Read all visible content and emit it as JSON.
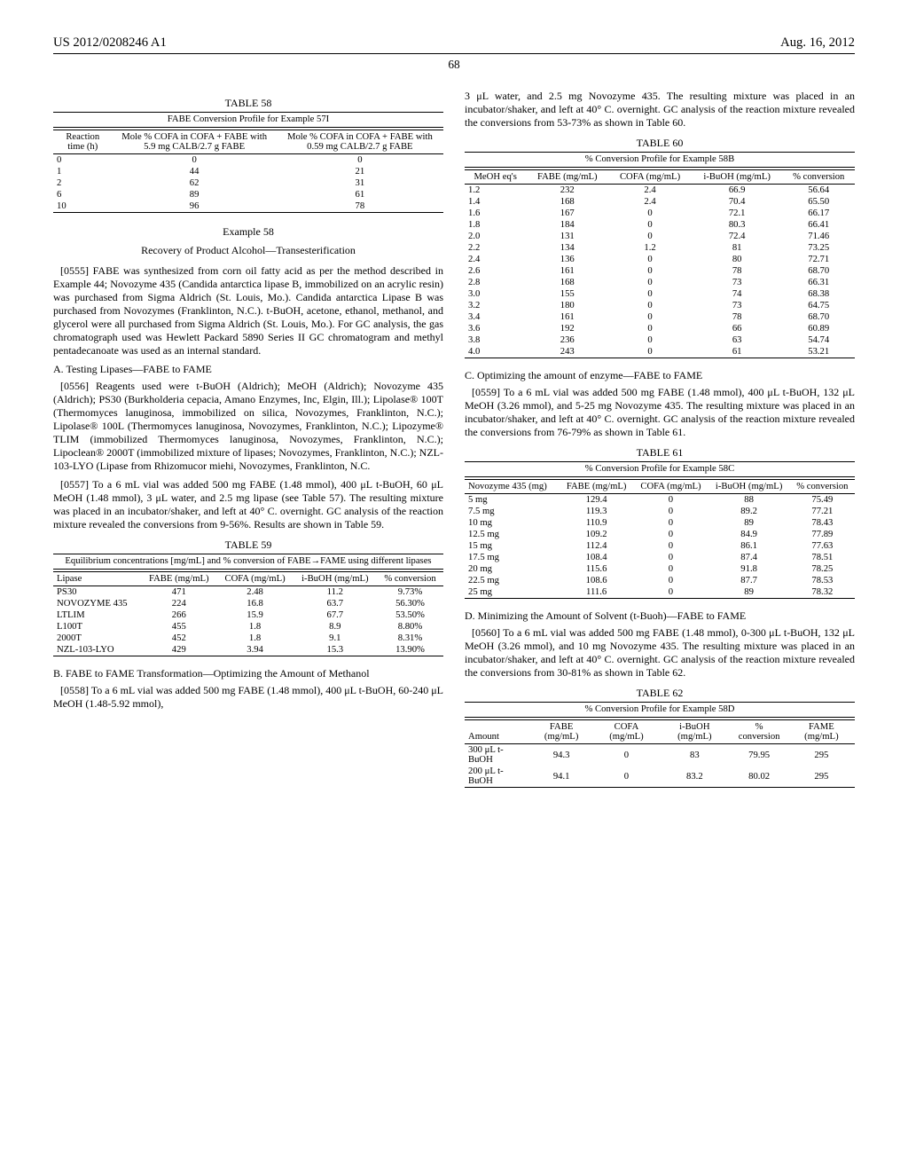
{
  "header": {
    "left": "US 2012/0208246 A1",
    "right": "Aug. 16, 2012",
    "page": "68"
  },
  "table58": {
    "caption": "TABLE 58",
    "subcaption": "FABE Conversion Profile for Example 57I",
    "columns": [
      "Reaction time (h)",
      "Mole % COFA in COFA + FABE with 5.9 mg CALB/2.7 g FABE",
      "Mole % COFA in COFA + FABE with 0.59 mg CALB/2.7 g FABE"
    ],
    "rows": [
      [
        "0",
        "0",
        "0"
      ],
      [
        "1",
        "44",
        "21"
      ],
      [
        "2",
        "62",
        "31"
      ],
      [
        "6",
        "89",
        "61"
      ],
      [
        "10",
        "96",
        "78"
      ]
    ]
  },
  "example58": {
    "title": "Example 58",
    "sub": "Recovery of Product Alcohol—Transesterification"
  },
  "p0555": "[0555]   FABE was synthesized from corn oil fatty acid as per the method described in Example 44; Novozyme 435 (Candida antarctica lipase B, immobilized on an acrylic resin) was purchased from Sigma Aldrich (St. Louis, Mo.). Candida antarctica Lipase B was purchased from Novozymes (Franklinton, N.C.). t-BuOH, acetone, ethanol, methanol, and glycerol were all purchased from Sigma Aldrich (St. Louis, Mo.). For GC analysis, the gas chromatograph used was Hewlett Packard 5890 Series II GC chromatogram and methyl pentadecanoate was used as an internal standard.",
  "subheadA": "A. Testing Lipases—FABE to FAME",
  "p0556": "[0556]   Reagents used were t-BuOH (Aldrich); MeOH (Aldrich); Novozyme 435 (Aldrich); PS30 (Burkholderia cepacia, Amano Enzymes, Inc, Elgin, Ill.); Lipolase® 100T (Thermomyces lanuginosa, immobilized on silica, Novozymes, Franklinton, N.C.); Lipolase® 100L (Thermomyces lanuginosa, Novozymes, Franklinton, N.C.); Lipozyme® TLIM (immobilized Thermomyces lanuginosa, Novozymes, Franklinton, N.C.); Lipoclean® 2000T (immobilized mixture of lipases; Novozymes, Franklinton, N.C.); NZL-103-LYO (Lipase from Rhizomucor miehi, Novozymes, Franklinton, N.C.",
  "p0557": "[0557]   To a 6 mL vial was added 500 mg FABE (1.48 mmol), 400 μL t-BuOH, 60 μL MeOH (1.48 mmol), 3 μL water, and 2.5 mg lipase (see Table 57). The resulting mixture was placed in an incubator/shaker, and left at 40° C. overnight. GC analysis of the reaction mixture revealed the conversions from 9-56%. Results are shown in Table 59.",
  "table59": {
    "caption": "TABLE 59",
    "subcaption": "Equilibrium concentrations [mg/mL] and % conversion of FABE→FAME using different lipases",
    "columns": [
      "Lipase",
      "FABE (mg/mL)",
      "COFA (mg/mL)",
      "i-BuOH (mg/mL)",
      "% conversion"
    ],
    "rows": [
      [
        "PS30",
        "471",
        "2.48",
        "11.2",
        "9.73%"
      ],
      [
        "NOVOZYME 435",
        "224",
        "16.8",
        "63.7",
        "56.30%"
      ],
      [
        "LTLIM",
        "266",
        "15.9",
        "67.7",
        "53.50%"
      ],
      [
        "L100T",
        "455",
        "1.8",
        "8.9",
        "8.80%"
      ],
      [
        "2000T",
        "452",
        "1.8",
        "9.1",
        "8.31%"
      ],
      [
        "NZL-103-LYO",
        "429",
        "3.94",
        "15.3",
        "13.90%"
      ]
    ]
  },
  "subheadB": "B. FABE to FAME Transformation—Optimizing the Amount of Methanol",
  "p0558": "[0558]   To a 6 mL vial was added 500 mg FABE (1.48 mmol), 400 μL t-BuOH, 60-240 μL MeOH (1.48-5.92 mmol),",
  "p0558b": "3 μL water, and 2.5 mg Novozyme 435. The resulting mixture was placed in an incubator/shaker, and left at 40° C. overnight. GC analysis of the reaction mixture revealed the conversions from 53-73% as shown in Table 60.",
  "table60": {
    "caption": "TABLE 60",
    "subcaption": "% Conversion Profile for Example 58B",
    "columns": [
      "MeOH eq's",
      "FABE (mg/mL)",
      "COFA (mg/mL)",
      "i-BuOH (mg/mL)",
      "% conversion"
    ],
    "rows": [
      [
        "1.2",
        "232",
        "2.4",
        "66.9",
        "56.64"
      ],
      [
        "1.4",
        "168",
        "2.4",
        "70.4",
        "65.50"
      ],
      [
        "1.6",
        "167",
        "0",
        "72.1",
        "66.17"
      ],
      [
        "1.8",
        "184",
        "0",
        "80.3",
        "66.41"
      ],
      [
        "2.0",
        "131",
        "0",
        "72.4",
        "71.46"
      ],
      [
        "2.2",
        "134",
        "1.2",
        "81",
        "73.25"
      ],
      [
        "2.4",
        "136",
        "0",
        "80",
        "72.71"
      ],
      [
        "2.6",
        "161",
        "0",
        "78",
        "68.70"
      ],
      [
        "2.8",
        "168",
        "0",
        "73",
        "66.31"
      ],
      [
        "3.0",
        "155",
        "0",
        "74",
        "68.38"
      ],
      [
        "3.2",
        "180",
        "0",
        "73",
        "64.75"
      ],
      [
        "3.4",
        "161",
        "0",
        "78",
        "68.70"
      ],
      [
        "3.6",
        "192",
        "0",
        "66",
        "60.89"
      ],
      [
        "3.8",
        "236",
        "0",
        "63",
        "54.74"
      ],
      [
        "4.0",
        "243",
        "0",
        "61",
        "53.21"
      ]
    ]
  },
  "subheadC": "C. Optimizing the amount of enzyme—FABE to FAME",
  "p0559": "[0559]   To a 6 mL vial was added 500 mg FABE (1.48 mmol), 400 μL t-BuOH, 132 μL MeOH (3.26 mmol), and 5-25 mg Novozyme 435. The resulting mixture was placed in an incubator/shaker, and left at 40° C. overnight. GC analysis of the reaction mixture revealed the conversions from 76-79% as shown in Table 61.",
  "table61": {
    "caption": "TABLE 61",
    "subcaption": "% Conversion Profile for Example 58C",
    "columns": [
      "Novozyme 435 (mg)",
      "FABE (mg/mL)",
      "COFA (mg/mL)",
      "i-BuOH (mg/mL)",
      "% conversion"
    ],
    "rows": [
      [
        "5 mg",
        "129.4",
        "0",
        "88",
        "75.49"
      ],
      [
        "7.5 mg",
        "119.3",
        "0",
        "89.2",
        "77.21"
      ],
      [
        "10 mg",
        "110.9",
        "0",
        "89",
        "78.43"
      ],
      [
        "12.5 mg",
        "109.2",
        "0",
        "84.9",
        "77.89"
      ],
      [
        "15 mg",
        "112.4",
        "0",
        "86.1",
        "77.63"
      ],
      [
        "17.5 mg",
        "108.4",
        "0",
        "87.4",
        "78.51"
      ],
      [
        "20 mg",
        "115.6",
        "0",
        "91.8",
        "78.25"
      ],
      [
        "22.5 mg",
        "108.6",
        "0",
        "87.7",
        "78.53"
      ],
      [
        "25 mg",
        "111.6",
        "0",
        "89",
        "78.32"
      ]
    ]
  },
  "subheadD": "D. Minimizing the Amount of Solvent (t-Buoh)—FABE to FAME",
  "p0560": "[0560]   To a 6 mL vial was added 500 mg FABE (1.48 mmol), 0-300 μL t-BuOH, 132 μL MeOH (3.26 mmol), and 10 mg Novozyme 435. The resulting mixture was placed in an incubator/shaker, and left at 40° C. overnight. GC analysis of the reaction mixture revealed the conversions from 30-81% as shown in Table 62.",
  "table62": {
    "caption": "TABLE 62",
    "subcaption": "% Conversion Profile for Example 58D",
    "columns": [
      "Amount",
      "FABE (mg/mL)",
      "COFA (mg/mL)",
      "i-BuOH (mg/mL)",
      "% conversion",
      "FAME (mg/mL)"
    ],
    "rows": [
      [
        "300 μL t-BuOH",
        "94.3",
        "0",
        "83",
        "79.95",
        "295"
      ],
      [
        "200 μL t-BuOH",
        "94.1",
        "0",
        "83.2",
        "80.02",
        "295"
      ]
    ]
  }
}
